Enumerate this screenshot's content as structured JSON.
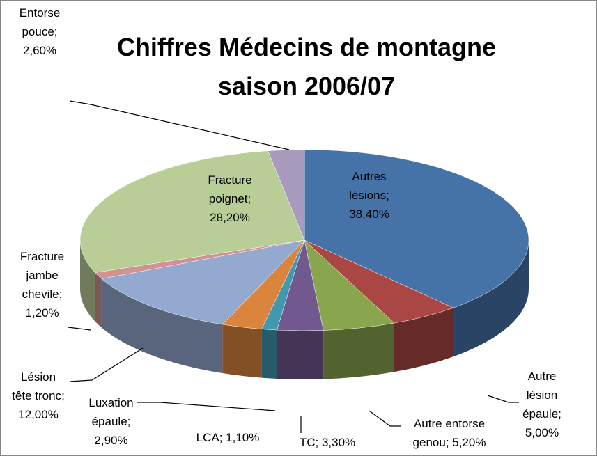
{
  "chart_data": {
    "type": "pie",
    "title": "Chiffres Médecins de montagne saison 2006/07",
    "categories": [
      "Autres lésions",
      "Autre lésion épaule",
      "Autre entorse genou",
      "TC",
      "LCA",
      "Luxation épaule",
      "Lésion tête tronc",
      "Fracture jambe chevile",
      "Fracture poignet",
      "Entorse pouce"
    ],
    "values": [
      38.4,
      5.0,
      5.2,
      3.3,
      1.1,
      2.9,
      12.0,
      1.2,
      28.2,
      2.6
    ],
    "value_labels": [
      "38,40%",
      "5,00%",
      "5,20%",
      "3,30%",
      "1,10%",
      "2,90%",
      "12,00%",
      "1,20%",
      "28,20%",
      "2,60%"
    ],
    "colors": [
      "#4572a7",
      "#aa4643",
      "#89a54e",
      "#71588f",
      "#4198af",
      "#db843d",
      "#93a9cf",
      "#d19392",
      "#b9cd96",
      "#a99bbd"
    ]
  }
}
